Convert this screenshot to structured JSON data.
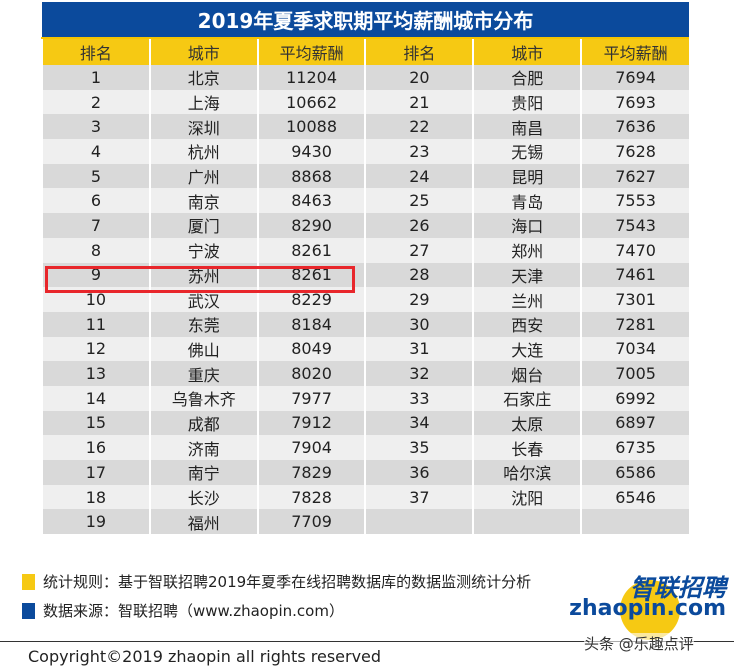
{
  "title": "2019年夏季求职期平均薪酬城市分布",
  "headers": [
    "排名",
    "城市",
    "平均薪酬",
    "排名",
    "城市",
    "平均薪酬"
  ],
  "rows": [
    [
      "1",
      "北京",
      "11204",
      "20",
      "合肥",
      "7694"
    ],
    [
      "2",
      "上海",
      "10662",
      "21",
      "贵阳",
      "7693"
    ],
    [
      "3",
      "深圳",
      "10088",
      "22",
      "南昌",
      "7636"
    ],
    [
      "4",
      "杭州",
      "9430",
      "23",
      "无锡",
      "7628"
    ],
    [
      "5",
      "广州",
      "8868",
      "24",
      "昆明",
      "7627"
    ],
    [
      "6",
      "南京",
      "8463",
      "25",
      "青岛",
      "7553"
    ],
    [
      "7",
      "厦门",
      "8290",
      "26",
      "海口",
      "7543"
    ],
    [
      "8",
      "宁波",
      "8261",
      "27",
      "郑州",
      "7470"
    ],
    [
      "9",
      "苏州",
      "8261",
      "28",
      "天津",
      "7461"
    ],
    [
      "10",
      "武汉",
      "8229",
      "29",
      "兰州",
      "7301"
    ],
    [
      "11",
      "东莞",
      "8184",
      "30",
      "西安",
      "7281"
    ],
    [
      "12",
      "佛山",
      "8049",
      "31",
      "大连",
      "7034"
    ],
    [
      "13",
      "重庆",
      "8020",
      "32",
      "烟台",
      "7005"
    ],
    [
      "14",
      "乌鲁木齐",
      "7977",
      "33",
      "石家庄",
      "6992"
    ],
    [
      "15",
      "成都",
      "7912",
      "34",
      "太原",
      "6897"
    ],
    [
      "16",
      "济南",
      "7904",
      "35",
      "长春",
      "6735"
    ],
    [
      "17",
      "南宁",
      "7829",
      "36",
      "哈尔滨",
      "6586"
    ],
    [
      "18",
      "长沙",
      "7828",
      "37",
      "沈阳",
      "6546"
    ],
    [
      "19",
      "福州",
      "7709",
      "",
      "",
      " "
    ]
  ],
  "highlight_row": "9",
  "notes": {
    "rule": "统计规则：基于智联招聘2019年夏季在线招聘数据库的数据监测统计分析",
    "source": "数据来源：智联招聘（www.zhaopin.com）"
  },
  "logo": {
    "cn": "智联招聘",
    "en": "zhaopin.com"
  },
  "watermark": "头条 @乐趣点评",
  "copyright": "Copyright©2019 zhaopin all rights reserved",
  "colors": {
    "title_bg": "#0b4a9c",
    "header_bg": "#f6c913",
    "highlight": "#e8262b"
  }
}
